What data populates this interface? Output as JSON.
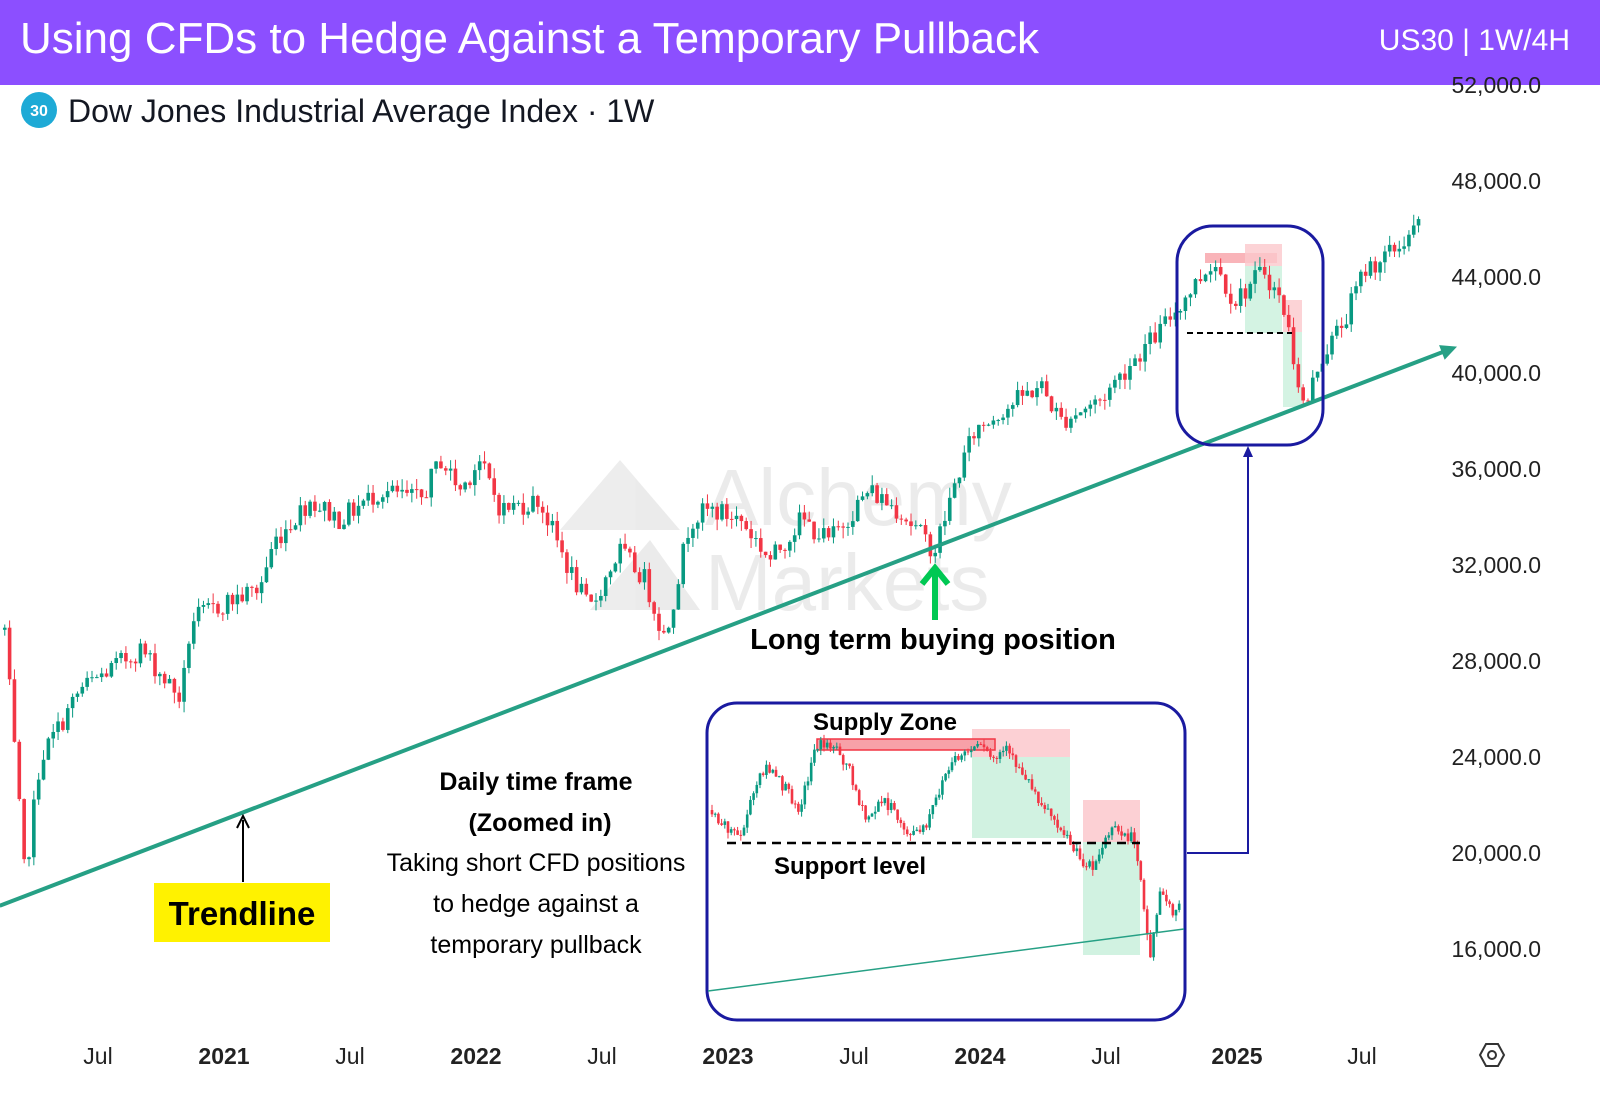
{
  "header": {
    "title": "Using CFDs to Hedge Against a Temporary Pullback",
    "symbol_timeframe": "US30 | 1W/4H",
    "background_color": "#8c4fff"
  },
  "instrument": {
    "badge": "30",
    "name": "Dow Jones Industrial Average Index · 1W",
    "badge_color": "#1eaad6"
  },
  "watermark": {
    "line1": "Alchemy",
    "line2": "Markets"
  },
  "chart_data": {
    "type": "candlestick",
    "title": "Dow Jones Industrial Average Index · 1W",
    "xlabel": "",
    "ylabel": "",
    "ylim": [
      13500,
      52500
    ],
    "y_ticks": [
      "52,000.0",
      "48,000.0",
      "44,000.0",
      "40,000.0",
      "36,000.0",
      "32,000.0",
      "28,000.0",
      "24,000.0",
      "20,000.0",
      "16,000.0"
    ],
    "x_ticks": [
      {
        "label": "Jul",
        "t": 2020.5,
        "bold": false
      },
      {
        "label": "2021",
        "t": 2021.0,
        "bold": true
      },
      {
        "label": "Jul",
        "t": 2021.5,
        "bold": false
      },
      {
        "label": "2022",
        "t": 2022.0,
        "bold": true
      },
      {
        "label": "Jul",
        "t": 2022.5,
        "bold": false
      },
      {
        "label": "2023",
        "t": 2023.0,
        "bold": true
      },
      {
        "label": "Jul",
        "t": 2023.5,
        "bold": false
      },
      {
        "label": "2024",
        "t": 2024.0,
        "bold": true
      },
      {
        "label": "Jul",
        "t": 2024.5,
        "bold": false
      },
      {
        "label": "2025",
        "t": 2025.0,
        "bold": true
      },
      {
        "label": "Jul",
        "t": 2025.5,
        "bold": false
      }
    ],
    "price_path": [
      [
        2020.13,
        29300
      ],
      [
        2020.21,
        18900
      ],
      [
        2020.27,
        23900
      ],
      [
        2020.43,
        26800
      ],
      [
        2020.67,
        28500
      ],
      [
        2020.83,
        26400
      ],
      [
        2020.87,
        29700
      ],
      [
        2021.02,
        30500
      ],
      [
        2021.14,
        31000
      ],
      [
        2021.2,
        33000
      ],
      [
        2021.34,
        34700
      ],
      [
        2021.46,
        33900
      ],
      [
        2021.62,
        35100
      ],
      [
        2021.78,
        34700
      ],
      [
        2021.86,
        36400
      ],
      [
        2021.94,
        35100
      ],
      [
        2022.01,
        36400
      ],
      [
        2022.1,
        34300
      ],
      [
        2022.25,
        34700
      ],
      [
        2022.37,
        31800
      ],
      [
        2022.45,
        30100
      ],
      [
        2022.57,
        32600
      ],
      [
        2022.67,
        31400
      ],
      [
        2022.75,
        28900
      ],
      [
        2022.85,
        33900
      ],
      [
        2022.93,
        34300
      ],
      [
        2023.05,
        33900
      ],
      [
        2023.17,
        32200
      ],
      [
        2023.29,
        33900
      ],
      [
        2023.4,
        33000
      ],
      [
        2023.56,
        35100
      ],
      [
        2023.68,
        34300
      ],
      [
        2023.82,
        32600
      ],
      [
        2023.92,
        36000
      ],
      [
        2023.98,
        37600
      ],
      [
        2024.08,
        38400
      ],
      [
        2024.24,
        39500
      ],
      [
        2024.32,
        38000
      ],
      [
        2024.48,
        38900
      ],
      [
        2024.6,
        40500
      ],
      [
        2024.71,
        41800
      ],
      [
        2024.79,
        43000
      ],
      [
        2024.91,
        44700
      ],
      [
        2024.99,
        43000
      ],
      [
        2025.11,
        44300
      ],
      [
        2025.19,
        42600
      ],
      [
        2025.27,
        38400
      ],
      [
        2025.33,
        40500
      ],
      [
        2025.43,
        42200
      ],
      [
        2025.51,
        44300
      ],
      [
        2025.63,
        45100
      ],
      [
        2025.73,
        46200
      ]
    ],
    "trendline": {
      "start": [
        2020.11,
        17800
      ],
      "end": [
        2025.88,
        41100
      ],
      "color": "#26a085"
    },
    "support_level": 41700,
    "colors": {
      "up": "#089981",
      "down": "#f23645",
      "trendline": "#26a085",
      "highlight_box": "#1a1aa0",
      "buy_arrow": "#00c853"
    },
    "grid": false,
    "legend": "none"
  },
  "annotations": {
    "trendline_label": "Trendline",
    "buy_label": "Long term buying position",
    "inset_title_1": "Daily time frame",
    "inset_title_2": "(Zoomed in)",
    "inset_desc_1": "Taking short CFD positions",
    "inset_desc_2": "to hedge against a",
    "inset_desc_3": "temporary pullback",
    "supply_zone": "Supply Zone",
    "support_level": "Support level"
  },
  "settings_icon": "settings-hexagon-icon"
}
